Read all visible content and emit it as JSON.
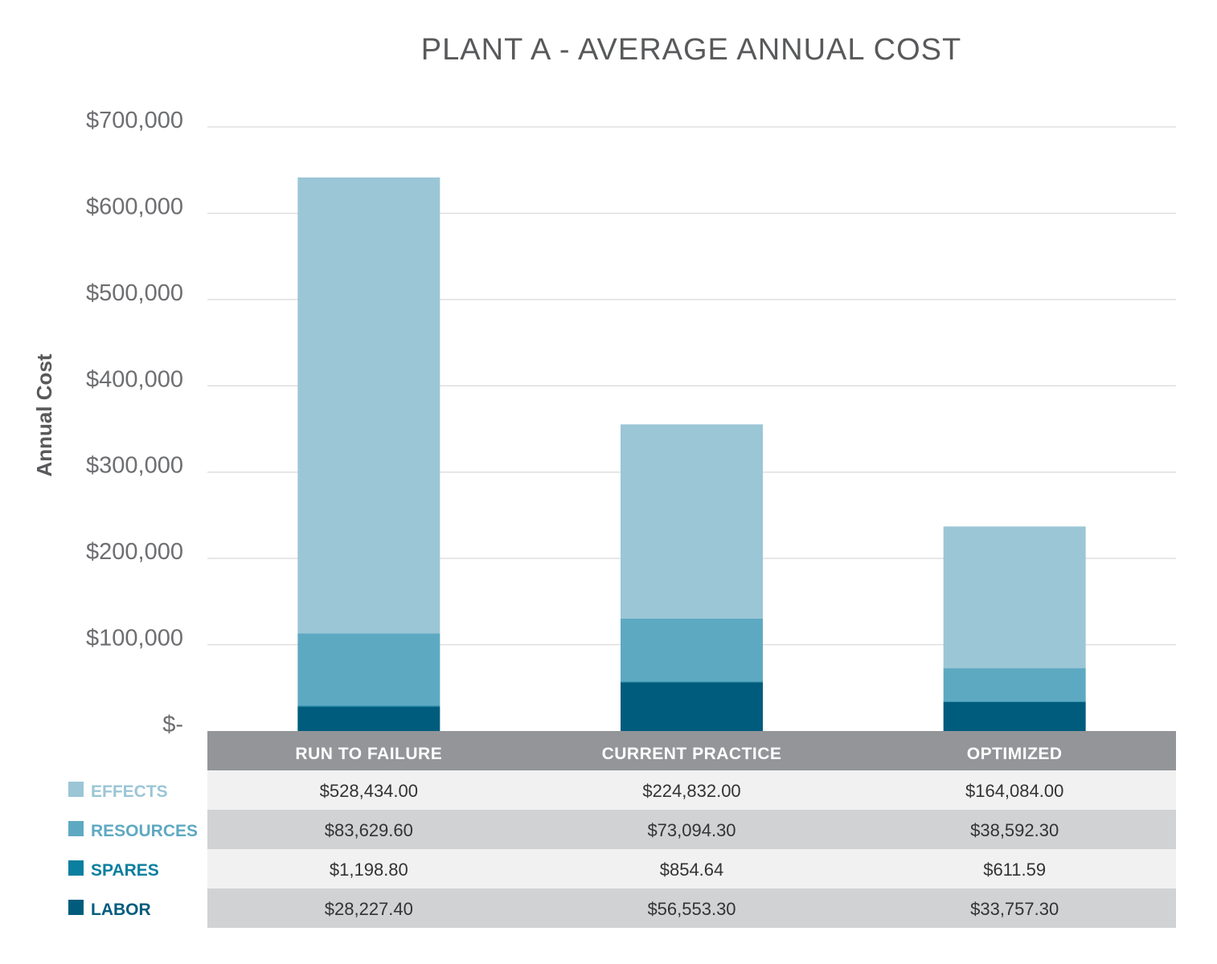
{
  "chart_data": {
    "type": "bar",
    "stacked": true,
    "title": "PLANT A - AVERAGE ANNUAL COST",
    "ylabel": "Annual Cost",
    "ylim": [
      0,
      700000
    ],
    "yticks": [
      0,
      100000,
      200000,
      300000,
      400000,
      500000,
      600000,
      700000
    ],
    "ytick_labels": [
      "$-",
      "$100,000",
      "$200,000",
      "$300,000",
      "$400,000",
      "$500,000",
      "$600,000",
      "$700,000"
    ],
    "grid": true,
    "legend_position": "left, below chart alongside data table",
    "categories": [
      "RUN TO FAILURE",
      "CURRENT PRACTICE",
      "OPTIMIZED"
    ],
    "series": [
      {
        "name": "EFFECTS",
        "color": "#9bc6d6",
        "values": [
          528434.0,
          224832.0,
          164084.0
        ],
        "labels": [
          "$528,434.00",
          "$224,832.00",
          "$164,084.00"
        ]
      },
      {
        "name": "RESOURCES",
        "color": "#5ea9c2",
        "values": [
          83629.6,
          73094.3,
          38592.3
        ],
        "labels": [
          "$83,629.60",
          "$73,094.30",
          "$38,592.30"
        ]
      },
      {
        "name": "SPARES",
        "color": "#0a7f9f",
        "values": [
          1198.8,
          854.64,
          611.59
        ],
        "labels": [
          "$1,198.80",
          "$854.64",
          "$611.59"
        ]
      },
      {
        "name": "LABOR",
        "color": "#005c7d",
        "values": [
          28227.4,
          56553.3,
          33757.3
        ],
        "labels": [
          "$28,227.40",
          "$56,553.30",
          "$33,757.30"
        ]
      }
    ],
    "table_colors": {
      "header": "#939598",
      "row_light": "#f1f1f2",
      "row_dark": "#d1d2d4"
    }
  }
}
